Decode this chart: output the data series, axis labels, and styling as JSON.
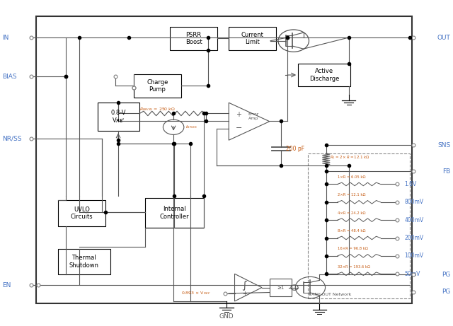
{
  "bg_color": "#ffffff",
  "border_color": "#333333",
  "line_color": "#555555",
  "blue_color": "#4472C4",
  "orange_color": "#C55A11",
  "text_color": "#000000",
  "pin_label_color": "#4472C4",
  "fig_width": 6.4,
  "fig_height": 4.61,
  "gnd_label": "GND",
  "fb_labels": [
    "1.6V",
    "800mV",
    "400mV",
    "200mV",
    "100mV",
    "50mV"
  ],
  "fb_resistors": [
    "1×R = 6.05 kΩ",
    "2×R = 12.1 kΩ",
    "4×R = 24.2 kΩ",
    "8×R = 48.4 kΩ",
    "16×R = 96.8 kΩ",
    "32×R = 193.6 kΩ"
  ]
}
